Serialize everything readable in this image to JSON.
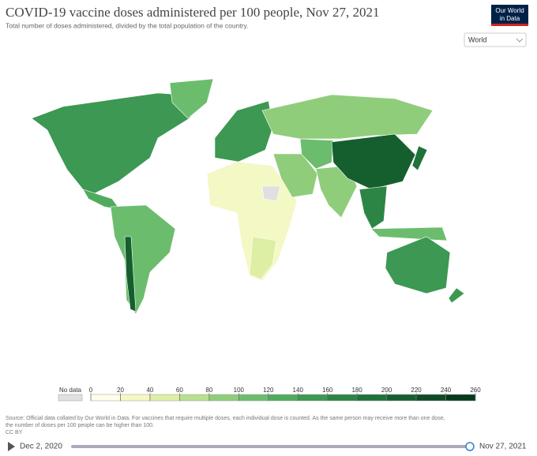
{
  "header": {
    "title": "COVID-19 vaccine doses administered per 100 people, Nov 27, 2021",
    "subtitle": "Total number of doses administered, divided by the total population of the country.",
    "logo": [
      "Our World",
      "in Data"
    ],
    "selector": "World"
  },
  "legend": {
    "no_data_label": "No data",
    "ticks": [
      0,
      20,
      40,
      60,
      80,
      100,
      120,
      140,
      160,
      180,
      200,
      220,
      240,
      260
    ],
    "colors": [
      "#fefee9",
      "#f4f8c4",
      "#dcefa5",
      "#b8e08e",
      "#8fcd7b",
      "#6bbd6d",
      "#50ab5f",
      "#3c9852",
      "#2d8545",
      "#1f7239",
      "#155f2f",
      "#0d4c25",
      "#063a1b"
    ],
    "no_data_color": "#e0e0e0"
  },
  "footer": {
    "source": [
      "Source: Official data collated by Our World in Data. For vaccines that require multiple doses, each individual dose is counted. As the same person may receive more than one dose,",
      "the number of doses per 100 people can be higher than 100."
    ],
    "license": "CC BY"
  },
  "timeline": {
    "start": "Dec 2, 2020",
    "end": "Nov 27, 2021"
  }
}
